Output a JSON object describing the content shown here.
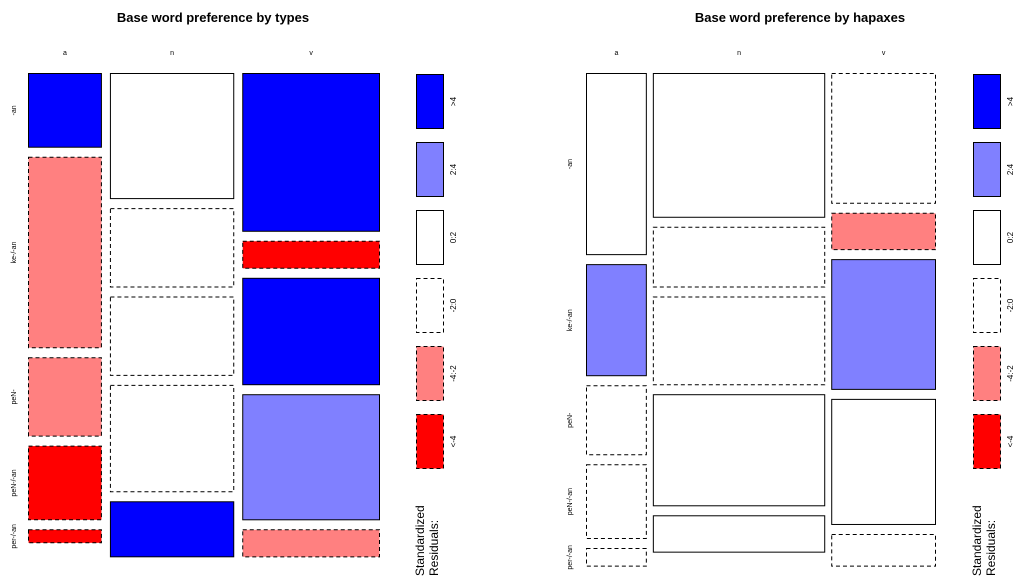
{
  "chart_data": [
    {
      "type": "mosaic",
      "title": "Base word preference by types",
      "columns": [
        "a",
        "n",
        "v"
      ],
      "rows": [
        "-an",
        "ke-/-an",
        "peN-",
        "peN-/-an",
        "per-/-an"
      ],
      "column_fractions": [
        0.22,
        0.37,
        0.41
      ],
      "cell_fractions": [
        [
          0.16,
          0.41,
          0.17,
          0.16,
          0.03
        ],
        [
          0.27,
          0.17,
          0.17,
          0.23,
          0.12
        ],
        [
          0.34,
          0.06,
          0.23,
          0.27,
          0.06
        ]
      ],
      "residual_classes": [
        [
          ">4",
          "-4:-2",
          "-4:-2",
          "<-4",
          "<-4"
        ],
        [
          "0:2",
          "-2:0",
          "-2:0",
          "-2:0",
          ">4"
        ],
        [
          ">4",
          "<-4",
          ">4",
          "2:4",
          "-4:-2"
        ]
      ],
      "legend": {
        "title_line1": "Standardized",
        "title_line2": "Residuals:",
        "labels": [
          ">4",
          "2:4",
          "0:2",
          "-2:0",
          "-4:-2",
          "<-4"
        ]
      }
    },
    {
      "type": "mosaic",
      "title": "Base word preference by hapaxes",
      "columns": [
        "a",
        "n",
        "v"
      ],
      "rows": [
        "-an",
        "ke-/-an",
        "peN-",
        "peN-/-an",
        "per-/-an"
      ],
      "column_fractions": [
        0.18,
        0.51,
        0.31
      ],
      "cell_fractions": [
        [
          0.39,
          0.24,
          0.15,
          0.16,
          0.04
        ],
        [
          0.31,
          0.13,
          0.19,
          0.24,
          0.08
        ],
        [
          0.28,
          0.08,
          0.28,
          0.27,
          0.07
        ]
      ],
      "residual_classes": [
        [
          "0:2",
          "2:4",
          "-2:0",
          "-2:0",
          "-2:0"
        ],
        [
          "0:2",
          "-2:0",
          "-2:0",
          "0:2",
          "0:2"
        ],
        [
          "-2:0",
          "-4:-2",
          "2:4",
          "0:2",
          "-2:0"
        ]
      ],
      "legend": {
        "title_line1": "Standardized",
        "title_line2": "Residuals:",
        "labels": [
          ">4",
          "2:4",
          "0:2",
          "-2:0",
          "-4:-2",
          "<-4"
        ]
      }
    }
  ],
  "residual_styles": {
    ">4": {
      "fill": "#0000ff",
      "dashed": false
    },
    "2:4": {
      "fill": "#8080ff",
      "dashed": false
    },
    "0:2": {
      "fill": "#ffffff",
      "dashed": false
    },
    "-2:0": {
      "fill": "#ffffff",
      "dashed": true
    },
    "-4:-2": {
      "fill": "#ff8080",
      "dashed": true
    },
    "<-4": {
      "fill": "#ff0000",
      "dashed": true
    }
  }
}
